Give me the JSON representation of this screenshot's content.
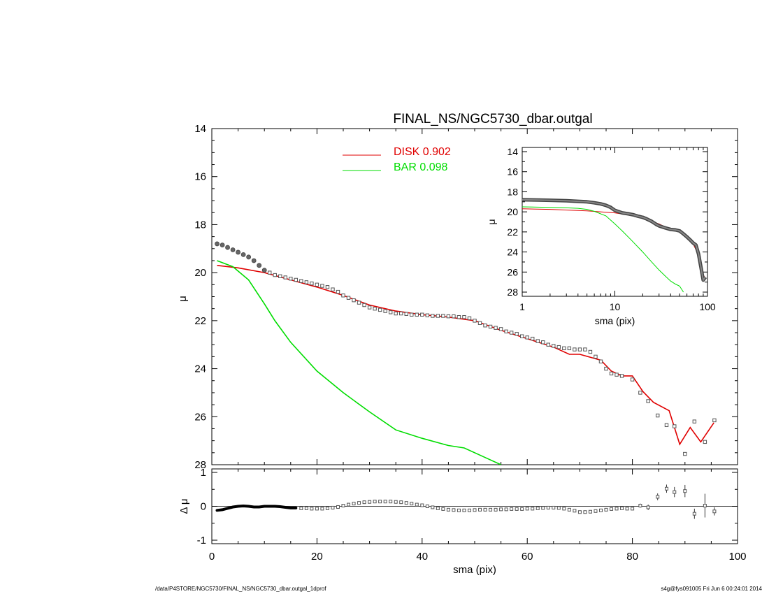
{
  "footer": {
    "left": "/data/P4STORE/NGC5730/FINAL_NS/NGC5730_dbar.outgal_1dprof",
    "right": "s4g@fys091005  Fri Jun  6 00:24:01 2014"
  },
  "colors": {
    "disk": "#e00000",
    "bar": "#00dd00",
    "data": "#555555"
  },
  "chart_data": [
    {
      "id": "main",
      "type": "line",
      "title": "FINAL_NS/NGC5730_dbar.outgal",
      "xlabel": "",
      "ylabel": "μ",
      "xlim": [
        0,
        100
      ],
      "ylim": [
        28,
        14
      ],
      "y_ticks": [
        14,
        16,
        18,
        20,
        22,
        24,
        26,
        28
      ],
      "legend": [
        {
          "label": "DISK",
          "value": "0.902",
          "color": "#e00000"
        },
        {
          "label": "BAR",
          "value": "0.098",
          "color": "#00dd00"
        }
      ],
      "legend_position": "top-center",
      "series": [
        {
          "name": "DISK",
          "style": "line",
          "color": "#e00000",
          "x": [
            1,
            5,
            10,
            15,
            20,
            25,
            30,
            35,
            40,
            45,
            50,
            55,
            60,
            65,
            68,
            70,
            74,
            76,
            78,
            80,
            82,
            84,
            87,
            89,
            91,
            93,
            95.5
          ],
          "y": [
            19.7,
            19.8,
            20.0,
            20.3,
            20.6,
            20.95,
            21.35,
            21.6,
            21.75,
            21.85,
            22.0,
            22.4,
            22.75,
            23.1,
            23.4,
            23.4,
            23.65,
            24.1,
            24.3,
            24.3,
            24.95,
            25.4,
            25.75,
            27.15,
            26.45,
            27.05,
            26.25
          ]
        },
        {
          "name": "BAR",
          "style": "line",
          "color": "#00dd00",
          "x": [
            1,
            4,
            7,
            10,
            12,
            15,
            20,
            25,
            30,
            35,
            40,
            45,
            48,
            52,
            55
          ],
          "y": [
            19.5,
            19.75,
            20.3,
            21.3,
            22.0,
            22.9,
            24.1,
            25.0,
            25.8,
            26.55,
            26.9,
            27.2,
            27.3,
            27.7,
            28.0
          ]
        },
        {
          "name": "data",
          "style": "markers",
          "color": "#555555",
          "x": [
            1,
            2,
            3,
            4,
            5,
            6,
            7,
            8,
            9,
            10,
            11,
            12,
            13,
            14,
            15,
            16,
            17,
            18,
            19,
            20,
            21,
            22,
            23,
            24,
            25,
            26,
            27,
            28,
            29,
            30,
            31,
            32,
            33,
            34,
            35,
            36,
            37,
            38,
            39,
            40,
            41,
            42,
            43,
            44,
            45,
            46,
            47,
            48,
            49,
            50,
            51,
            52,
            53,
            54,
            55,
            56,
            57,
            58,
            59,
            60,
            61,
            62,
            63,
            64,
            65,
            66,
            67,
            68,
            69,
            70,
            71,
            72,
            73,
            74,
            75,
            76,
            77,
            78,
            80,
            81.5,
            83,
            84.8,
            86.5,
            88,
            90,
            91.8,
            93.8,
            95.6
          ],
          "y": [
            18.8,
            18.85,
            18.95,
            19.05,
            19.15,
            19.25,
            19.35,
            19.5,
            19.7,
            19.9,
            20.0,
            20.1,
            20.15,
            20.2,
            20.25,
            20.3,
            20.35,
            20.4,
            20.45,
            20.5,
            20.55,
            20.6,
            20.7,
            20.8,
            20.95,
            21.05,
            21.15,
            21.25,
            21.35,
            21.45,
            21.5,
            21.55,
            21.6,
            21.65,
            21.7,
            21.7,
            21.72,
            21.75,
            21.75,
            21.75,
            21.78,
            21.8,
            21.8,
            21.8,
            21.82,
            21.82,
            21.85,
            21.85,
            21.9,
            22.0,
            22.1,
            22.2,
            22.25,
            22.3,
            22.35,
            22.45,
            22.5,
            22.55,
            22.65,
            22.7,
            22.75,
            22.85,
            22.9,
            23.0,
            23.05,
            23.1,
            23.15,
            23.15,
            23.2,
            23.2,
            23.2,
            23.3,
            23.5,
            23.7,
            24.0,
            24.2,
            24.25,
            24.3,
            24.45,
            25.0,
            25.35,
            25.95,
            26.35,
            26.4,
            27.55,
            26.2,
            27.05,
            26.15
          ]
        }
      ]
    },
    {
      "id": "residual",
      "type": "scatter",
      "xlabel": "sma (pix)",
      "ylabel": "Δ μ",
      "xlim": [
        0,
        100
      ],
      "ylim": [
        -1,
        1
      ],
      "x_ticks": [
        0,
        20,
        40,
        60,
        80,
        100
      ],
      "y_ticks": [
        -1,
        0,
        1
      ],
      "series": [
        {
          "name": "dense",
          "style": "curve",
          "color": "#000000",
          "x": [
            1,
            2,
            3,
            4,
            5,
            6,
            7,
            8,
            9,
            10,
            11,
            12,
            13,
            14,
            15,
            16
          ],
          "y": [
            -0.12,
            -0.1,
            -0.06,
            -0.02,
            0.0,
            0.01,
            0.0,
            -0.02,
            -0.02,
            0.0,
            0.0,
            0.0,
            -0.01,
            -0.03,
            -0.05,
            -0.05
          ]
        },
        {
          "name": "residuals",
          "style": "markers",
          "color": "#555555",
          "x": [
            17,
            18,
            19,
            20,
            21,
            22,
            23,
            24,
            25,
            26,
            27,
            28,
            29,
            30,
            31,
            32,
            33,
            34,
            35,
            36,
            37,
            38,
            39,
            40,
            41,
            42,
            43,
            44,
            45,
            46,
            47,
            48,
            49,
            50,
            51,
            52,
            53,
            54,
            55,
            56,
            57,
            58,
            59,
            60,
            61,
            62,
            63,
            64,
            65,
            66,
            67,
            68,
            69,
            70,
            71,
            72,
            73,
            74,
            75,
            76,
            77,
            78,
            79,
            80
          ],
          "y": [
            -0.06,
            -0.06,
            -0.07,
            -0.07,
            -0.07,
            -0.06,
            -0.04,
            -0.02,
            0.02,
            0.05,
            0.08,
            0.1,
            0.12,
            0.13,
            0.14,
            0.14,
            0.14,
            0.14,
            0.13,
            0.12,
            0.1,
            0.08,
            0.05,
            0.03,
            0.0,
            -0.03,
            -0.06,
            -0.08,
            -0.1,
            -0.11,
            -0.12,
            -0.12,
            -0.12,
            -0.11,
            -0.1,
            -0.1,
            -0.1,
            -0.1,
            -0.09,
            -0.09,
            -0.08,
            -0.08,
            -0.08,
            -0.07,
            -0.07,
            -0.06,
            -0.05,
            -0.04,
            -0.04,
            -0.05,
            -0.07,
            -0.1,
            -0.13,
            -0.17,
            -0.17,
            -0.16,
            -0.14,
            -0.12,
            -0.1,
            -0.08,
            -0.07,
            -0.06,
            -0.07,
            -0.07
          ]
        },
        {
          "name": "outer",
          "style": "errorbars",
          "color": "#555555",
          "x": [
            81.5,
            83,
            84.8,
            86.5,
            88,
            90,
            91.8,
            93.8,
            95.6
          ],
          "y": [
            0.02,
            -0.03,
            0.28,
            0.52,
            0.42,
            0.45,
            -0.22,
            0.02,
            -0.15
          ],
          "err": [
            0.06,
            0.08,
            0.1,
            0.12,
            0.15,
            0.18,
            0.15,
            0.35,
            0.12
          ]
        }
      ]
    },
    {
      "id": "inset",
      "type": "line",
      "xlabel": "sma (pix)",
      "ylabel": "μ",
      "xscale": "log",
      "xlim": [
        1,
        100
      ],
      "ylim": [
        28,
        14
      ],
      "x_ticks": [
        1,
        10,
        100
      ],
      "y_ticks": [
        14,
        16,
        18,
        20,
        22,
        24,
        26,
        28
      ],
      "series": [
        {
          "name": "DISK",
          "style": "line",
          "color": "#e00000",
          "x": [
            1,
            2,
            5,
            10,
            15,
            20,
            30,
            40,
            50,
            60,
            70,
            80,
            90,
            95
          ],
          "y": [
            19.7,
            19.75,
            19.9,
            20.1,
            20.35,
            20.6,
            21.2,
            21.75,
            22.0,
            22.6,
            23.2,
            24.3,
            26.3,
            26.6
          ]
        },
        {
          "name": "BAR",
          "style": "line",
          "color": "#00dd00",
          "x": [
            1,
            2,
            3,
            4,
            5,
            6,
            8,
            10,
            12,
            15,
            20,
            25,
            30,
            35,
            40,
            45,
            50,
            55
          ],
          "y": [
            19.5,
            19.55,
            19.6,
            19.65,
            19.75,
            19.95,
            20.4,
            21.2,
            21.9,
            22.8,
            24.0,
            25.0,
            25.8,
            26.4,
            26.9,
            27.2,
            27.4,
            28.0
          ]
        },
        {
          "name": "data",
          "style": "thick",
          "color": "#555555",
          "x": [
            1,
            1.5,
            2,
            3,
            4,
            5,
            6,
            7,
            8,
            9,
            10,
            12,
            14,
            16,
            18,
            20,
            22,
            25,
            28,
            30,
            35,
            40,
            45,
            50,
            55,
            60,
            65,
            70,
            75,
            80,
            85,
            90,
            95
          ],
          "y": [
            18.8,
            18.82,
            18.85,
            18.9,
            18.95,
            19.0,
            19.1,
            19.2,
            19.35,
            19.55,
            19.85,
            20.1,
            20.2,
            20.3,
            20.45,
            20.55,
            20.7,
            20.95,
            21.25,
            21.4,
            21.6,
            21.75,
            21.8,
            21.9,
            22.2,
            22.5,
            22.8,
            23.1,
            23.3,
            24.2,
            25.5,
            26.8,
            26.5
          ]
        }
      ]
    }
  ]
}
